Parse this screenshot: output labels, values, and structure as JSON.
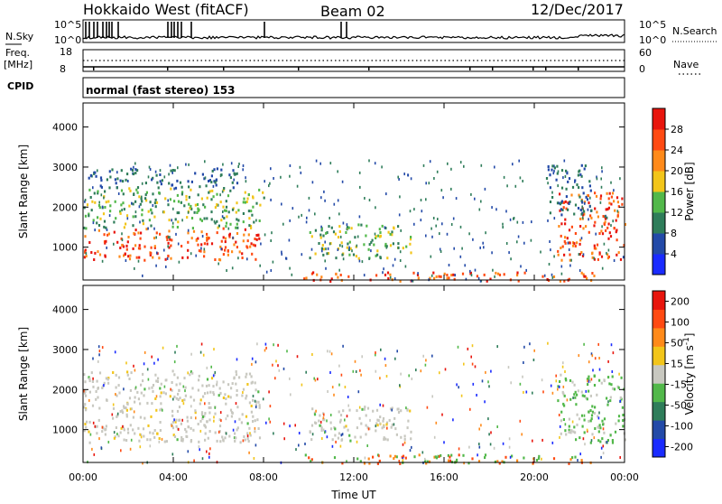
{
  "header": {
    "radar": "Hokkaido West (fitACF)",
    "beam": "Beam 02",
    "date": "12/Dec/2017"
  },
  "noise_panel": {
    "left_label": "N.Sky",
    "left_ticks": [
      "10^5",
      "10^0"
    ],
    "right_ticks": [
      "10^5",
      "10^0"
    ],
    "right_label": "N.Search"
  },
  "freq_panel": {
    "left_label_1": "Freq.",
    "left_label_2": "[MHz]",
    "left_ticks": [
      "18",
      "8"
    ],
    "right_ticks": [
      "60",
      "0"
    ],
    "right_label": "Nave"
  },
  "cpid": {
    "label": "CPID",
    "text": "normal (fast stereo) 153"
  },
  "chart_data": [
    {
      "type": "heatmap",
      "ylabel": "Slant Range [km]",
      "ylim": [
        180,
        4600
      ],
      "y_ticks": [
        "4000",
        "3000",
        "2000",
        "1000"
      ],
      "x_range": [
        0,
        24
      ],
      "colorbar": {
        "label": "Power [dB]",
        "range": [
          0,
          32
        ],
        "ticks": [
          "28",
          "24",
          "20",
          "16",
          "12",
          "8",
          "4"
        ],
        "colors": [
          "#1a2bff",
          "#234aa8",
          "#2f7d5a",
          "#52b84a",
          "#f2c51a",
          "#ff8a1a",
          "#ff4a12",
          "#e8150d"
        ]
      },
      "bands": [
        {
          "t0": 0.0,
          "t1": 7.8,
          "r0": 700,
          "r1": 1500,
          "level": "high"
        },
        {
          "t0": 0.0,
          "t1": 8.0,
          "r0": 1500,
          "r1": 2500,
          "level": "mid"
        },
        {
          "t0": 0.2,
          "t1": 7.0,
          "r0": 2500,
          "r1": 3000,
          "level": "low"
        },
        {
          "t0": 10.0,
          "t1": 14.5,
          "r0": 750,
          "r1": 1600,
          "level": "mid"
        },
        {
          "t0": 9.5,
          "t1": 23.0,
          "r0": 180,
          "r1": 400,
          "level": "high"
        },
        {
          "t0": 21.0,
          "t1": 24.0,
          "r0": 700,
          "r1": 2400,
          "level": "high"
        },
        {
          "t0": 20.5,
          "t1": 22.5,
          "r0": 1800,
          "r1": 3100,
          "level": "low"
        }
      ]
    },
    {
      "type": "heatmap",
      "xlabel": "Time UT",
      "ylabel": "Slant Range [km]",
      "ylim": [
        180,
        4600
      ],
      "y_ticks": [
        "4000",
        "3000",
        "2000",
        "1000"
      ],
      "x_range": [
        0,
        24
      ],
      "x_ticks": [
        "00:00",
        "04:00",
        "08:00",
        "12:00",
        "16:00",
        "20:00",
        "00:00"
      ],
      "colorbar": {
        "label": "Velocity [m s^-1]",
        "range": [
          -250,
          250
        ],
        "ticks": [
          "200",
          "100",
          "50",
          "15",
          "-15",
          "-50",
          "-100",
          "-200"
        ],
        "colors": [
          "#e8150d",
          "#ff4a12",
          "#ff8a1a",
          "#f2c51a",
          "#c8c8c0",
          "#52b84a",
          "#2f7d5a",
          "#234aa8",
          "#1a2bff"
        ]
      },
      "bands": [
        {
          "t0": 0.0,
          "t1": 7.8,
          "r0": 700,
          "r1": 2500,
          "level": "ground"
        },
        {
          "t0": 10.0,
          "t1": 14.5,
          "r0": 750,
          "r1": 1600,
          "level": "ground"
        },
        {
          "t0": 9.5,
          "t1": 23.0,
          "r0": 180,
          "r1": 400,
          "level": "mixed"
        },
        {
          "t0": 21.0,
          "t1": 24.0,
          "r0": 700,
          "r1": 2400,
          "level": "green"
        }
      ]
    }
  ]
}
